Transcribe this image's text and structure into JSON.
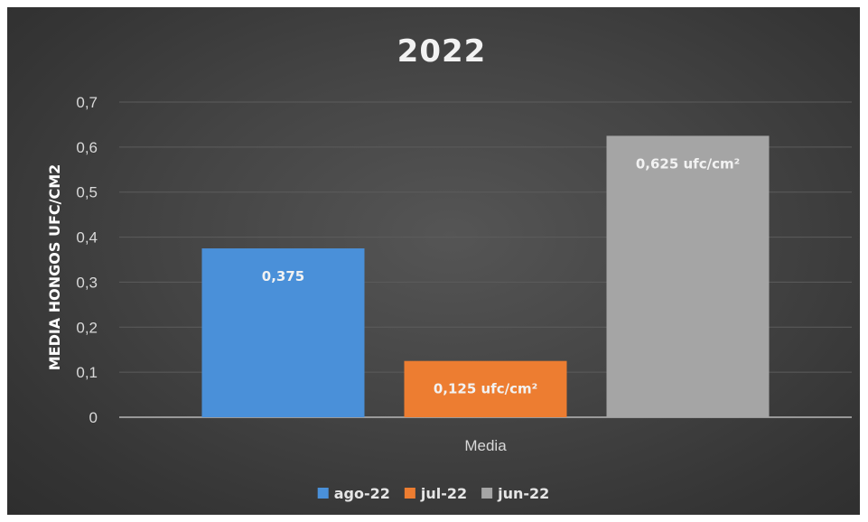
{
  "chart_data": {
    "type": "bar",
    "title": "2022",
    "xlabel": "",
    "ylabel": "MEDIA HONGOS UFC/CM2",
    "categories": [
      "Media"
    ],
    "ylim": [
      0,
      0.7
    ],
    "yticks": [
      "0",
      "0,1",
      "0,2",
      "0,3",
      "0,4",
      "0,5",
      "0,6",
      "0,7"
    ],
    "grid": true,
    "legend_position": "bottom",
    "series": [
      {
        "name": "ago-22",
        "values": [
          0.375
        ],
        "color": "#4a90d9",
        "label": "0,375"
      },
      {
        "name": "jul-22",
        "values": [
          0.125
        ],
        "color": "#ed7d31",
        "label": "0,125 ufc/cm²"
      },
      {
        "name": "jun-22",
        "values": [
          0.625
        ],
        "color": "#a5a5a5",
        "label": "0,625 ufc/cm²"
      }
    ]
  }
}
